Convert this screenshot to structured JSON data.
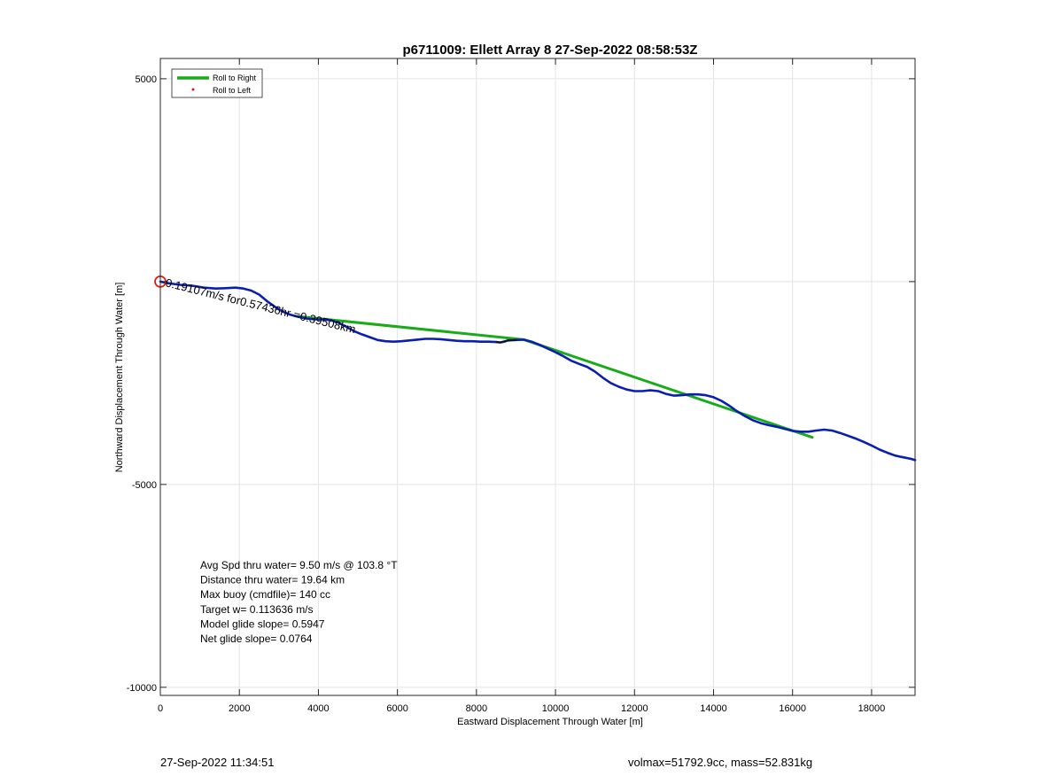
{
  "chart_data": {
    "type": "line",
    "title": "p6711009: Ellett Array 8 27-Sep-2022 08:58:53Z",
    "xlabel": "Eastward Displacement Through Water [m]",
    "ylabel": "Northward Displacement Through Water [m]",
    "xlim": [
      0,
      19100
    ],
    "ylim": [
      -10200,
      5500
    ],
    "x_ticks": [
      0,
      2000,
      4000,
      6000,
      8000,
      10000,
      12000,
      14000,
      16000,
      18000
    ],
    "x_tick_labels": [
      "0",
      "2000",
      "4000",
      "6000",
      "8000",
      "10000",
      "12000",
      "14000",
      "16000",
      "18000"
    ],
    "y_ticks": [
      -10000,
      -5000,
      0,
      5000
    ],
    "y_tick_labels": [
      "-10000",
      "-5000",
      "",
      "5000"
    ],
    "grid": true,
    "legend_position": "top-left",
    "legend": [
      {
        "label": "Roll to Right",
        "color": "#1aab1a",
        "style": "line"
      },
      {
        "label": "Roll to Left",
        "color": "#e01b1b",
        "style": "dot"
      }
    ],
    "series": [
      {
        "name": "Roll to Right",
        "color": "#1aab1a",
        "x": [
          3500,
          9200,
          16500
        ],
        "y": [
          -860,
          -1430,
          -3840
        ]
      },
      {
        "color": "#0a1fb0",
        "x": [
          0,
          200,
          500,
          800,
          1100,
          1400,
          1700,
          1900,
          2100,
          2300,
          2500,
          2700,
          2900,
          3100,
          3300,
          3500,
          3700,
          3900,
          4100,
          4300,
          4500,
          4700,
          4900,
          5100,
          5300,
          5500,
          5700,
          5900,
          6100,
          6300,
          6500,
          6700,
          6900,
          7100,
          7300,
          7500,
          7700,
          7900,
          8100,
          8300,
          8500,
          8600,
          8700,
          8800,
          9000,
          9200,
          9400,
          9600,
          9800,
          10000,
          10200,
          10400,
          10600,
          10800,
          11000,
          11200,
          11400,
          11600,
          11800,
          12000,
          12200,
          12400,
          12600,
          12800,
          13000,
          13200,
          13400,
          13600,
          13800,
          14000,
          14200,
          14400,
          14600,
          14800,
          15000,
          15200,
          15400,
          15600,
          15800,
          16000,
          16200,
          16400,
          16600,
          16800,
          17000,
          17200,
          17400,
          17600,
          17800,
          18000,
          18200,
          18400,
          18600,
          18800,
          19000,
          19100
        ],
        "y": [
          0,
          -40,
          -80,
          -100,
          -150,
          -170,
          -160,
          -150,
          -170,
          -220,
          -320,
          -480,
          -620,
          -740,
          -820,
          -870,
          -910,
          -930,
          -930,
          -950,
          -1010,
          -1110,
          -1220,
          -1300,
          -1370,
          -1440,
          -1470,
          -1480,
          -1470,
          -1450,
          -1430,
          -1410,
          -1410,
          -1420,
          -1440,
          -1460,
          -1470,
          -1470,
          -1480,
          -1480,
          -1490,
          -1500,
          -1480,
          -1450,
          -1440,
          -1430,
          -1480,
          -1560,
          -1650,
          -1740,
          -1840,
          -1950,
          -2030,
          -2100,
          -2220,
          -2370,
          -2500,
          -2590,
          -2660,
          -2700,
          -2700,
          -2680,
          -2700,
          -2770,
          -2810,
          -2800,
          -2780,
          -2780,
          -2800,
          -2850,
          -2940,
          -3060,
          -3200,
          -3320,
          -3420,
          -3490,
          -3540,
          -3580,
          -3630,
          -3680,
          -3700,
          -3700,
          -3670,
          -3650,
          -3670,
          -3730,
          -3800,
          -3870,
          -3950,
          -4040,
          -4140,
          -4220,
          -4290,
          -4330,
          -4370,
          -4400
        ]
      },
      {
        "color": "#111111",
        "x": [
          8500,
          8600,
          8700,
          8800,
          9000
        ],
        "y": [
          -1490,
          -1500,
          -1470,
          -1450,
          -1440
        ]
      }
    ],
    "start_marker": {
      "x": 0,
      "y": 0,
      "color": "#e01b1b"
    },
    "annotations": {
      "segment_text": "0.19107m/s for0.57436hr =0.39508km",
      "stats": [
        "Avg Spd thru water=  9.50 m/s @ 103.8 °T",
        "Distance thru water= 19.64 km",
        "Max buoy (cmdfile)= 140 cc",
        "Target w= 0.113636 m/s",
        "Model glide slope= 0.5947",
        "Net glide slope= 0.0764"
      ]
    }
  },
  "footer": {
    "timestamp": "27-Sep-2022 11:34:51",
    "summary": "volmax=51792.9cc, mass=52.831kg"
  }
}
